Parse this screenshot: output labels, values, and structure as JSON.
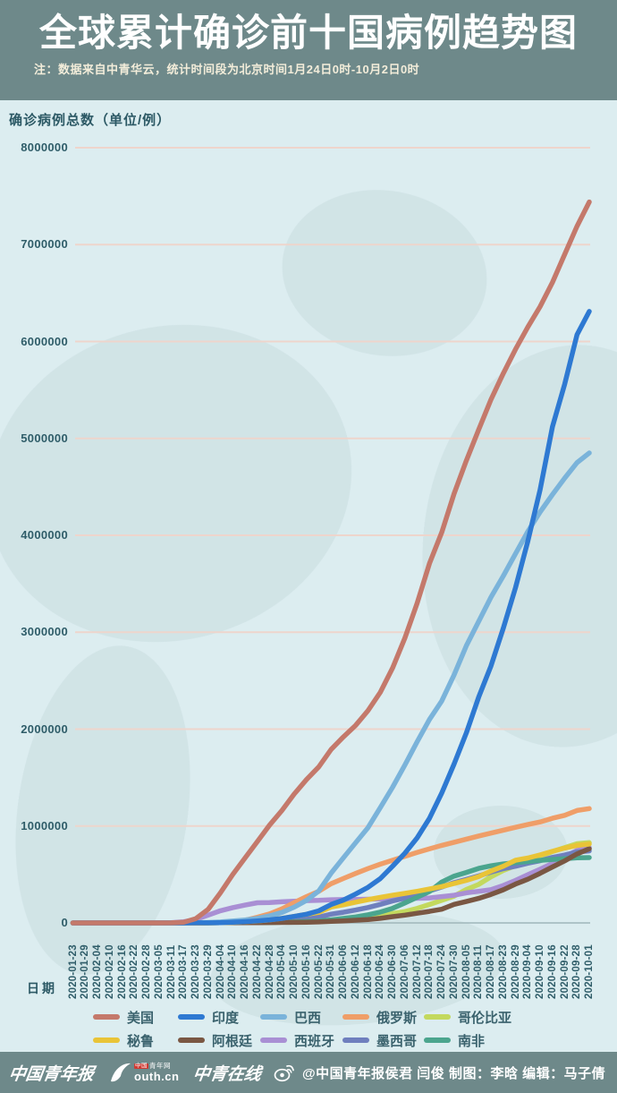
{
  "header": {
    "title": "全球累计确诊前十国病例趋势图",
    "note": "注：数据来自中青华云，统计时间段为北京时间1月24日0时-10月2日0时"
  },
  "colors": {
    "banner_bg": "#6e898a",
    "chart_bg": "#dcedf0",
    "map_watermark": "#c8dcdf",
    "grid_line": "#eed5cc",
    "zero_line": "#9fb6ba",
    "axis_text": "#2f5d69"
  },
  "chart_data": {
    "type": "line",
    "title": "全球累计确诊前十国病例趋势图",
    "xlabel": "日期",
    "ylabel": "确诊病例总数（单位/例）",
    "ylim": [
      0,
      8000000
    ],
    "yticks": [
      0,
      1000000,
      2000000,
      3000000,
      4000000,
      5000000,
      6000000,
      7000000,
      8000000
    ],
    "grid": true,
    "legend_position": "bottom",
    "x": [
      "2020-01-23",
      "2020-01-29",
      "2020-02-04",
      "2020-02-10",
      "2020-02-16",
      "2020-02-22",
      "2020-02-28",
      "2020-03-05",
      "2020-03-11",
      "2020-03-17",
      "2020-03-23",
      "2020-03-29",
      "2020-04-04",
      "2020-04-10",
      "2020-04-16",
      "2020-04-22",
      "2020-04-28",
      "2020-05-04",
      "2020-05-10",
      "2020-05-16",
      "2020-05-22",
      "2020-05-31",
      "2020-06-06",
      "2020-06-12",
      "2020-06-18",
      "2020-06-24",
      "2020-06-30",
      "2020-07-06",
      "2020-07-12",
      "2020-07-18",
      "2020-07-24",
      "2020-07-30",
      "2020-08-05",
      "2020-08-11",
      "2020-08-17",
      "2020-08-23",
      "2020-08-29",
      "2020-09-04",
      "2020-09-10",
      "2020-09-16",
      "2020-09-22",
      "2020-09-28",
      "2020-10-01"
    ],
    "series": [
      {
        "name": "美国",
        "color": "#c4796b",
        "values": [
          1,
          5,
          11,
          12,
          15,
          35,
          60,
          220,
          1300,
          6400,
          44000,
          140000,
          310000,
          500000,
          670000,
          840000,
          1010000,
          1160000,
          1330000,
          1480000,
          1610000,
          1790000,
          1920000,
          2040000,
          2190000,
          2380000,
          2630000,
          2940000,
          3300000,
          3710000,
          4030000,
          4430000,
          4770000,
          5090000,
          5400000,
          5670000,
          5920000,
          6150000,
          6360000,
          6610000,
          6900000,
          7190000,
          7440000
        ]
      },
      {
        "name": "印度",
        "color": "#2e79d2",
        "values": [
          0,
          1,
          3,
          3,
          3,
          3,
          3,
          30,
          62,
          140,
          500,
          1000,
          3100,
          7600,
          13000,
          21000,
          31000,
          46000,
          67000,
          90000,
          125000,
          190000,
          236000,
          298000,
          367000,
          457000,
          585000,
          720000,
          878000,
          1080000,
          1340000,
          1640000,
          1960000,
          2330000,
          2650000,
          3040000,
          3460000,
          3940000,
          4470000,
          5120000,
          5560000,
          6070000,
          6310000
        ]
      },
      {
        "name": "巴西",
        "color": "#7ab3da",
        "values": [
          0,
          0,
          0,
          0,
          0,
          0,
          1,
          8,
          52,
          320,
          2200,
          4300,
          10300,
          19600,
          30400,
          45800,
          73200,
          108000,
          163000,
          233000,
          330000,
          514000,
          672000,
          829000,
          983000,
          1190000,
          1400000,
          1630000,
          1870000,
          2100000,
          2290000,
          2560000,
          2860000,
          3110000,
          3360000,
          3580000,
          3810000,
          4040000,
          4240000,
          4420000,
          4590000,
          4750000,
          4850000
        ]
      },
      {
        "name": "俄罗斯",
        "color": "#ef9e68",
        "values": [
          0,
          0,
          2,
          2,
          2,
          2,
          5,
          7,
          28,
          114,
          440,
          1530,
          4730,
          12000,
          28000,
          58000,
          93000,
          145000,
          210000,
          272000,
          326000,
          405000,
          458000,
          511000,
          561000,
          606000,
          647000,
          687000,
          727000,
          765000,
          800000,
          832000,
          865000,
          897000,
          927000,
          957000,
          987000,
          1015000,
          1042000,
          1080000,
          1110000,
          1160000,
          1180000
        ]
      },
      {
        "name": "哥伦比亚",
        "color": "#c3d95e",
        "values": [
          0,
          0,
          0,
          0,
          0,
          0,
          0,
          0,
          1,
          65,
          300,
          700,
          1400,
          2500,
          3100,
          4100,
          5600,
          7700,
          10500,
          14200,
          18300,
          29000,
          36600,
          43700,
          57000,
          78000,
          97000,
          117000,
          150000,
          190000,
          233000,
          276000,
          345000,
          397000,
          476000,
          541000,
          590000,
          641000,
          686000,
          736000,
          777000,
          818000,
          829000
        ]
      },
      {
        "name": "秘鲁",
        "color": "#e9c437",
        "values": [
          0,
          0,
          0,
          0,
          0,
          0,
          0,
          0,
          11,
          120,
          400,
          850,
          1800,
          5900,
          12500,
          19300,
          31200,
          47400,
          67300,
          88500,
          109000,
          164000,
          187000,
          214000,
          240000,
          264000,
          285000,
          305000,
          326000,
          350000,
          375000,
          407000,
          439000,
          478000,
          535000,
          585000,
          647000,
          670000,
          702000,
          739000,
          772000,
          800000,
          814000
        ]
      },
      {
        "name": "阿根廷",
        "color": "#7a5743",
        "values": [
          0,
          0,
          0,
          0,
          0,
          0,
          0,
          1,
          19,
          65,
          300,
          745,
          1450,
          1975,
          2600,
          3200,
          4100,
          4900,
          5800,
          7500,
          9900,
          16800,
          21000,
          27400,
          35500,
          47200,
          64500,
          80400,
          100000,
          119000,
          141000,
          191000,
          221000,
          253000,
          294000,
          342000,
          401000,
          451000,
          512000,
          577000,
          640000,
          712000,
          765000
        ]
      },
      {
        "name": "西班牙",
        "color": "#a98fd4",
        "values": [
          0,
          0,
          0,
          0,
          2,
          2,
          25,
          260,
          2300,
          11700,
          35100,
          80100,
          126000,
          158000,
          184000,
          208000,
          210000,
          218000,
          224000,
          230000,
          233000,
          239000,
          241000,
          243000,
          245000,
          247000,
          249000,
          252000,
          254000,
          258000,
          272000,
          285000,
          310000,
          326000,
          343000,
          386000,
          439000,
          498000,
          554000,
          614000,
          682000,
          748000,
          778000
        ]
      },
      {
        "name": "墨西哥",
        "color": "#6f7fbe",
        "values": [
          0,
          0,
          0,
          0,
          0,
          0,
          1,
          5,
          11,
          82,
          370,
          993,
          1890,
          3440,
          5850,
          9500,
          16800,
          23500,
          33500,
          47100,
          59600,
          90700,
          110000,
          133000,
          159000,
          191000,
          226000,
          256000,
          295000,
          331000,
          370000,
          416000,
          449000,
          485000,
          525000,
          560000,
          585000,
          616000,
          642000,
          676000,
          700000,
          733000,
          743000
        ]
      },
      {
        "name": "南非",
        "color": "#4ba58e",
        "values": [
          0,
          0,
          0,
          0,
          0,
          0,
          0,
          1,
          13,
          85,
          400,
          1200,
          1600,
          2000,
          2500,
          3600,
          5000,
          7200,
          10000,
          14400,
          19100,
          31000,
          46000,
          62000,
          83900,
          112000,
          151000,
          206000,
          264000,
          324000,
          422000,
          483000,
          521000,
          563000,
          589000,
          609000,
          622000,
          633000,
          646000,
          655000,
          663000,
          672000,
          674000
        ]
      }
    ]
  },
  "footer": {
    "logos": {
      "china_youth_daily": "中国青年报",
      "youth_cn_box": "中国",
      "youth_cn_top": "青年网",
      "youth_cn_url": "outh.cn",
      "zhongqing_online": "中青在线"
    },
    "weibo_credit": "@中国青年报侯君 闫俊 制图：李晗 编辑：马子倩"
  }
}
